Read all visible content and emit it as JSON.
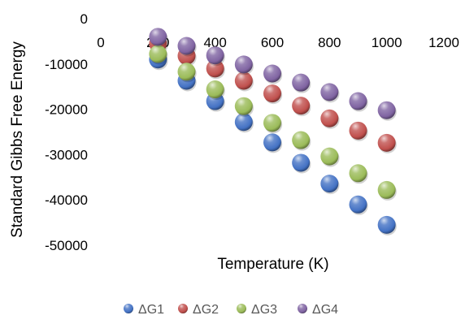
{
  "chart_data": {
    "type": "scatter",
    "title": "",
    "xlabel": "Temperature (K)",
    "ylabel": "Standard Gibbs Free Energy",
    "xlim": [
      0,
      1200
    ],
    "ylim": [
      -50000,
      0
    ],
    "xticks": [
      0,
      200,
      400,
      600,
      800,
      1000,
      1200
    ],
    "yticks": [
      0,
      -10000,
      -20000,
      -30000,
      -40000,
      -50000
    ],
    "grid": false,
    "legend_position": "bottom",
    "series": [
      {
        "name": "ΔG1",
        "color": "#4472C4",
        "x": [
          200,
          300,
          400,
          500,
          600,
          700,
          800,
          900,
          1000
        ],
        "y": [
          -9000,
          -13700,
          -18200,
          -22800,
          -27300,
          -31800,
          -36400,
          -41000,
          -45500
        ]
      },
      {
        "name": "ΔG2",
        "color": "#C0504D",
        "x": [
          200,
          300,
          400,
          500,
          600,
          700,
          800,
          900,
          1000
        ],
        "y": [
          -5500,
          -8200,
          -11000,
          -13700,
          -16500,
          -19200,
          -22000,
          -24700,
          -27400
        ]
      },
      {
        "name": "ΔG3",
        "color": "#9BBB59",
        "x": [
          200,
          300,
          400,
          500,
          600,
          700,
          800,
          900,
          1000
        ],
        "y": [
          -7800,
          -11700,
          -15600,
          -19300,
          -23000,
          -26800,
          -30400,
          -34100,
          -37800
        ]
      },
      {
        "name": "ΔG4",
        "color": "#8064A2",
        "x": [
          200,
          300,
          400,
          500,
          600,
          700,
          800,
          900,
          1000
        ],
        "y": [
          -4000,
          -6000,
          -8100,
          -10100,
          -12100,
          -14100,
          -16200,
          -18200,
          -20200
        ]
      }
    ]
  }
}
